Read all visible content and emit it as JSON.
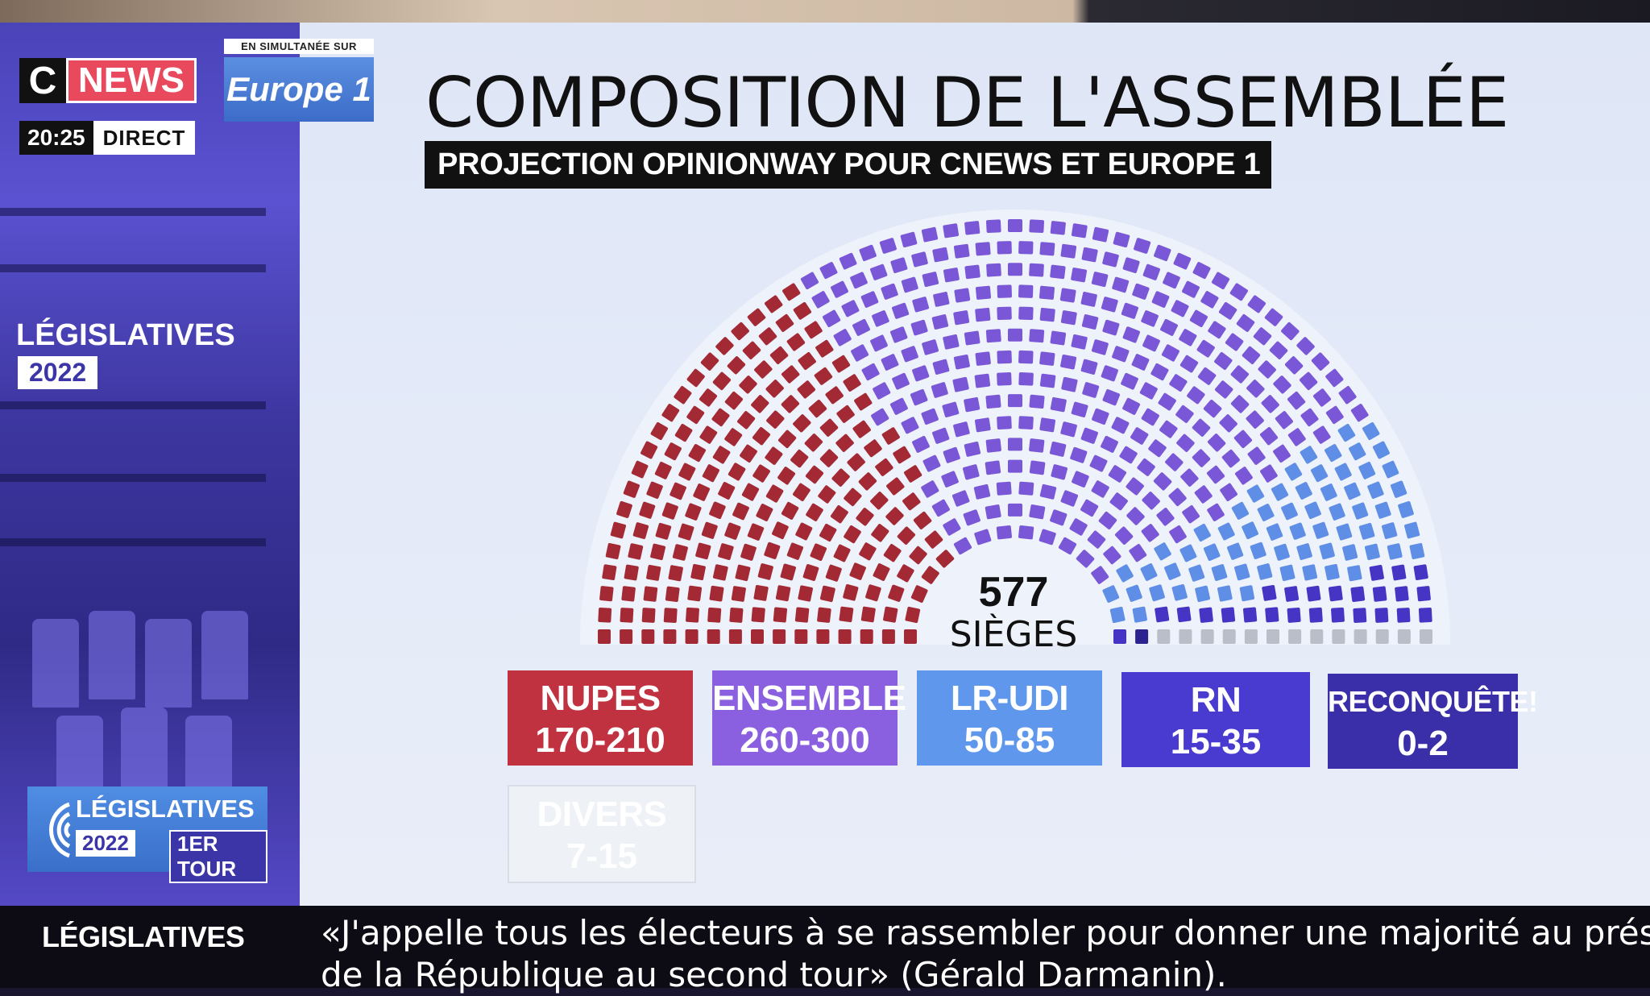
{
  "channel": {
    "logo_c": "C",
    "logo_news": "NEWS",
    "time": "20:25",
    "live_label": "DIRECT",
    "simulcast_label": "EN SIMULTANÉE SUR",
    "radio_logo": "Europe 1"
  },
  "badges": {
    "legislatives_title": "LÉGISLATIVES",
    "legislatives_year": "2022",
    "round_title": "LÉGISLATIVES",
    "round_year": "2022",
    "round_label": "1ER TOUR"
  },
  "graphic": {
    "title": "COMPOSITION DE L'ASSEMBLÉE",
    "subtitle": "PROJECTION OPINIONWAY POUR CNEWS ET EUROPE 1",
    "total_seats": "577",
    "total_seats_label": "SIÈGES"
  },
  "chart_data": {
    "type": "hemicycle",
    "total": 577,
    "seat_allocation_shown": [
      {
        "party": "NUPES",
        "seats": 190,
        "color": "#a32a35"
      },
      {
        "party": "ENSEMBLE",
        "seats": 280,
        "color": "#7a57d6"
      },
      {
        "party": "LR-UDI",
        "seats": 68,
        "color": "#5f8ee6"
      },
      {
        "party": "RN",
        "seats": 25,
        "color": "#4634c4"
      },
      {
        "party": "RECONQUÊTE!",
        "seats": 1,
        "color": "#2c2390"
      },
      {
        "party": "DIVERS",
        "seats": 13,
        "color": "#b9bec8"
      }
    ]
  },
  "legend": [
    {
      "name": "NUPES",
      "range": "170-210",
      "color": "#c0323f",
      "text_color": "#ffffff"
    },
    {
      "name": "ENSEMBLE",
      "range": "260-300",
      "color": "#8a5fe0",
      "text_color": "#ffffff"
    },
    {
      "name": "LR-UDI",
      "range": "50-85",
      "color": "#5f97ec",
      "text_color": "#ffffff"
    },
    {
      "name": "RN",
      "range": "15-35",
      "color": "#4a3bd0",
      "text_color": "#ffffff"
    },
    {
      "name": "RECONQUÊTE!",
      "range": "0-2",
      "color": "#3a2fa8",
      "text_color": "#ffffff"
    },
    {
      "name": "DIVERS",
      "range": "7-15",
      "color": "#eef1f5",
      "text_color": "#ffffff"
    }
  ],
  "ticker": {
    "label": "LÉGISLATIVES",
    "line1": "«J'appelle tous les électeurs à se rassembler pour donner une majorité au présider",
    "line2": "de la République au second tour» (Gérald Darmanin)."
  }
}
